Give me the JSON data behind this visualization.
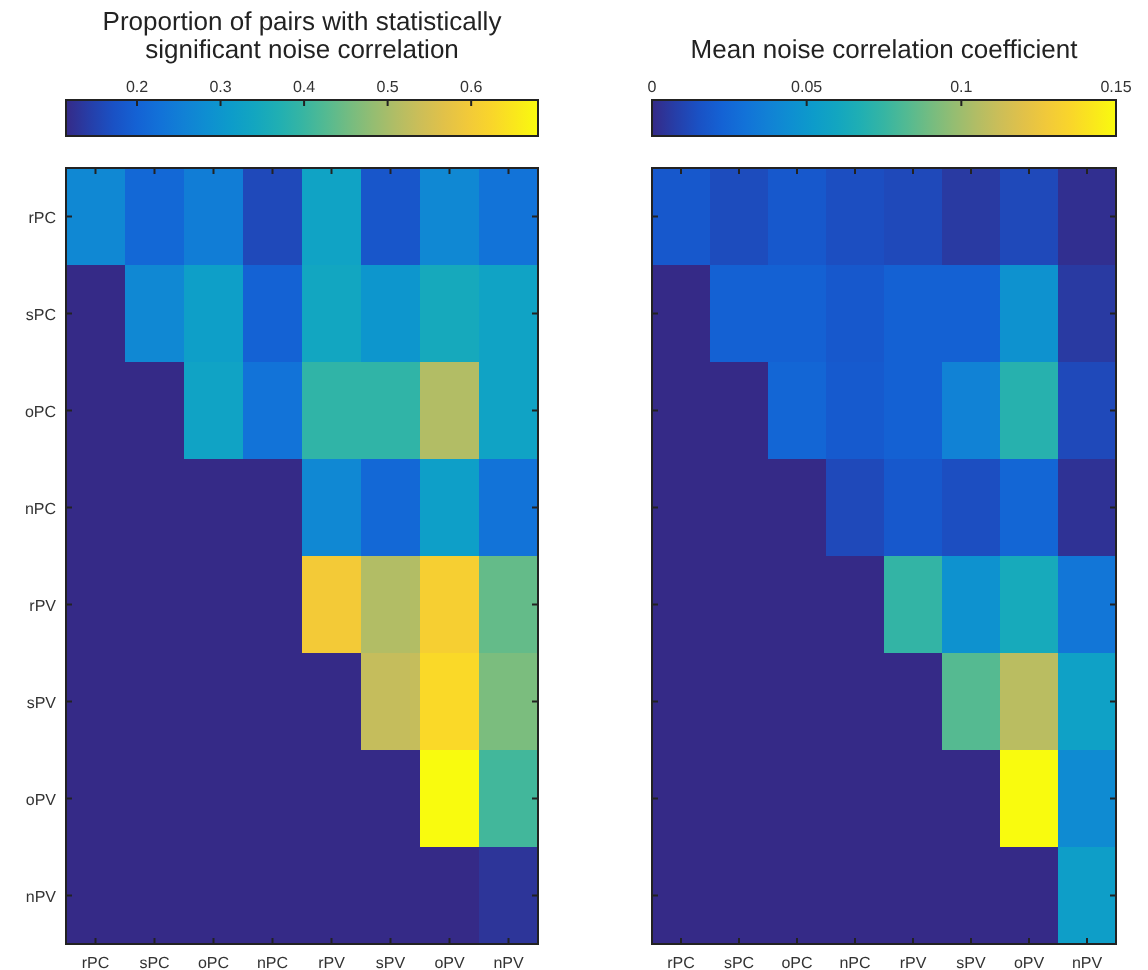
{
  "chart_data": [
    {
      "type": "heatmap",
      "title": "Proportion of pairs with statistically\nsignificant noise correlation",
      "categories": [
        "rPC",
        "sPC",
        "oPC",
        "nPC",
        "rPV",
        "sPV",
        "oPV",
        "nPV"
      ],
      "y_categories": [
        "rPC",
        "sPC",
        "oPC",
        "nPC",
        "rPV",
        "sPV",
        "oPV",
        "nPV"
      ],
      "cells": [
        [
          0.27,
          0.21,
          0.25,
          0.16,
          0.33,
          0.18,
          0.27,
          0.23
        ],
        [
          null,
          0.27,
          0.32,
          0.2,
          0.34,
          0.3,
          0.35,
          0.33
        ],
        [
          null,
          null,
          0.33,
          0.23,
          0.39,
          0.39,
          0.51,
          0.33
        ],
        [
          null,
          null,
          null,
          null,
          0.27,
          0.21,
          0.32,
          0.23
        ],
        [
          null,
          null,
          null,
          null,
          0.6,
          0.51,
          0.61,
          0.44
        ],
        [
          null,
          null,
          null,
          null,
          null,
          0.53,
          0.63,
          0.46
        ],
        [
          null,
          null,
          null,
          null,
          null,
          null,
          0.68,
          0.41
        ],
        [
          null,
          null,
          null,
          null,
          null,
          null,
          null,
          0.13
        ]
      ],
      "clim": [
        0.115,
        0.68
      ],
      "cticks": [
        0.2,
        0.3,
        0.4,
        0.5,
        0.6
      ]
    },
    {
      "type": "heatmap",
      "title": "Mean noise correlation coefficient",
      "categories": [
        "rPC",
        "sPC",
        "oPC",
        "nPC",
        "rPV",
        "sPV",
        "oPV",
        "nPV"
      ],
      "y_categories": [
        null,
        null,
        null,
        null,
        null,
        null,
        null,
        null
      ],
      "tick_labels": "x",
      "cells": [
        [
          0.018,
          0.013,
          0.018,
          0.014,
          0.012,
          0.006,
          0.012,
          0.002
        ],
        [
          null,
          0.022,
          0.022,
          0.018,
          0.022,
          0.022,
          0.047,
          0.006
        ],
        [
          null,
          null,
          0.024,
          0.019,
          0.022,
          0.038,
          0.07,
          0.012
        ],
        [
          null,
          null,
          null,
          0.012,
          0.018,
          0.014,
          0.024,
          0.003
        ],
        [
          null,
          null,
          null,
          null,
          0.074,
          0.047,
          0.063,
          0.032
        ],
        [
          null,
          null,
          null,
          null,
          null,
          0.083,
          0.107,
          0.056
        ],
        [
          null,
          null,
          null,
          null,
          null,
          null,
          0.15,
          0.043
        ],
        [
          null,
          null,
          null,
          null,
          null,
          null,
          null,
          0.054
        ]
      ],
      "clim": [
        0,
        0.15
      ],
      "cticks": [
        0,
        0.05,
        0.1,
        0.15
      ]
    }
  ]
}
